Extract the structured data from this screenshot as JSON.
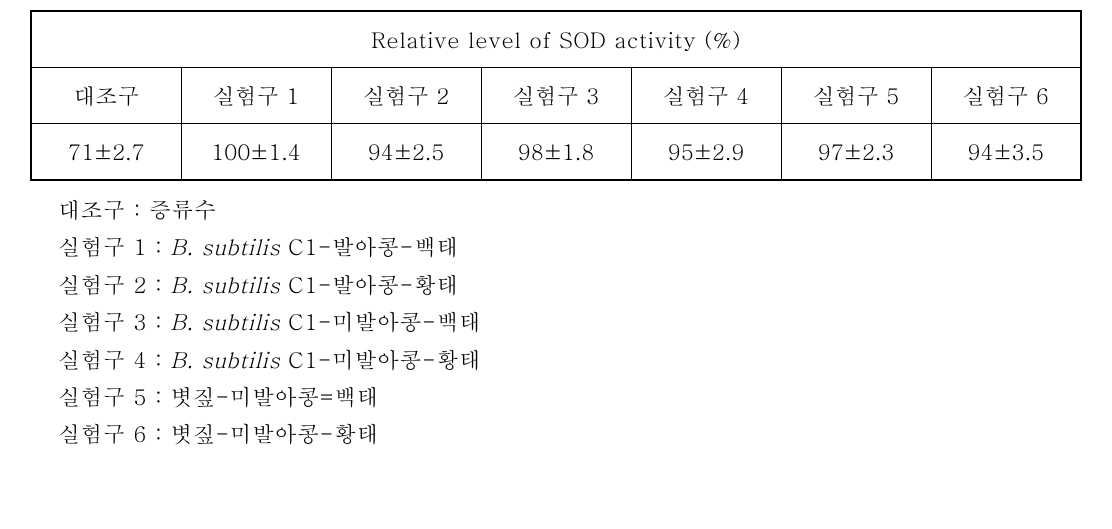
{
  "table": {
    "title": "Relative level of SOD activity (%)",
    "headers": [
      "대조구",
      "실험구 1",
      "실험구 2",
      "실험구 3",
      "실험구 4",
      "실험구 5",
      "실험구 6"
    ],
    "values": [
      "71±2.7",
      "100±1.4",
      "94±2.5",
      "98±1.8",
      "95±2.9",
      "97±2.3",
      "94±3.5"
    ],
    "column_count": 7,
    "border_color": "#000000",
    "background_color": "#ffffff",
    "font_size": 22,
    "cell_align": "center"
  },
  "legend": {
    "items": [
      {
        "label": "대조구 : ",
        "italic": "",
        "rest": "증류수"
      },
      {
        "label": "실험구 1 : ",
        "italic": "B. subtilis",
        "rest": " C1-발아콩-백태"
      },
      {
        "label": "실험구 2 : ",
        "italic": "B. subtilis",
        "rest": " C1-발아콩-황태"
      },
      {
        "label": "실험구 3 : ",
        "italic": "B. subtilis",
        "rest": " C1-미발아콩-백태"
      },
      {
        "label": "실험구 4 : ",
        "italic": "B. subtilis",
        "rest": " C1-미발아콩-황태"
      },
      {
        "label": "실험구 5 : ",
        "italic": "",
        "rest": "볏짚-미발아콩=백태"
      },
      {
        "label": "실험구 6 : ",
        "italic": "",
        "rest": "볏짚-미발아콩-황태"
      }
    ],
    "font_size": 22,
    "line_height": 1.7
  }
}
